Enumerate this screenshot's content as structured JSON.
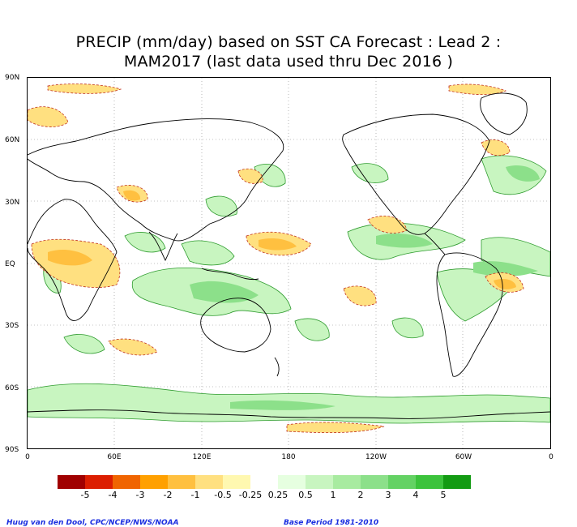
{
  "title": {
    "line1": "PRECIP (mm/day) based on SST CA Forecast : Lead 2 :",
    "line2": "MAM2017 (last data used thru Dec 2016 )"
  },
  "axes": {
    "lat_labels": [
      "90N",
      "60N",
      "30N",
      "EQ",
      "30S",
      "60S",
      "90S"
    ],
    "lon_labels": [
      "0",
      "60E",
      "120E",
      "180",
      "120W",
      "60W",
      "0"
    ]
  },
  "colorbar": {
    "colors": [
      "#a00000",
      "#dc1e00",
      "#f06400",
      "#ffa000",
      "#ffc040",
      "#ffe080",
      "#fff8b0",
      "#ffffff",
      "#e6ffe0",
      "#c8f5c0",
      "#a8eba0",
      "#8ce08a",
      "#64d264",
      "#3cc33c",
      "#139b13"
    ],
    "labels": [
      "-5",
      "-4",
      "-3",
      "-2",
      "-1",
      "-0.5",
      "-0.25",
      "0.25",
      "0.5",
      "1",
      "2",
      "3",
      "4",
      "5"
    ]
  },
  "credits": {
    "left": "Huug van den Dool, CPC/NCEP/NWS/NOAA",
    "right": "Base Period 1981-2010"
  }
}
